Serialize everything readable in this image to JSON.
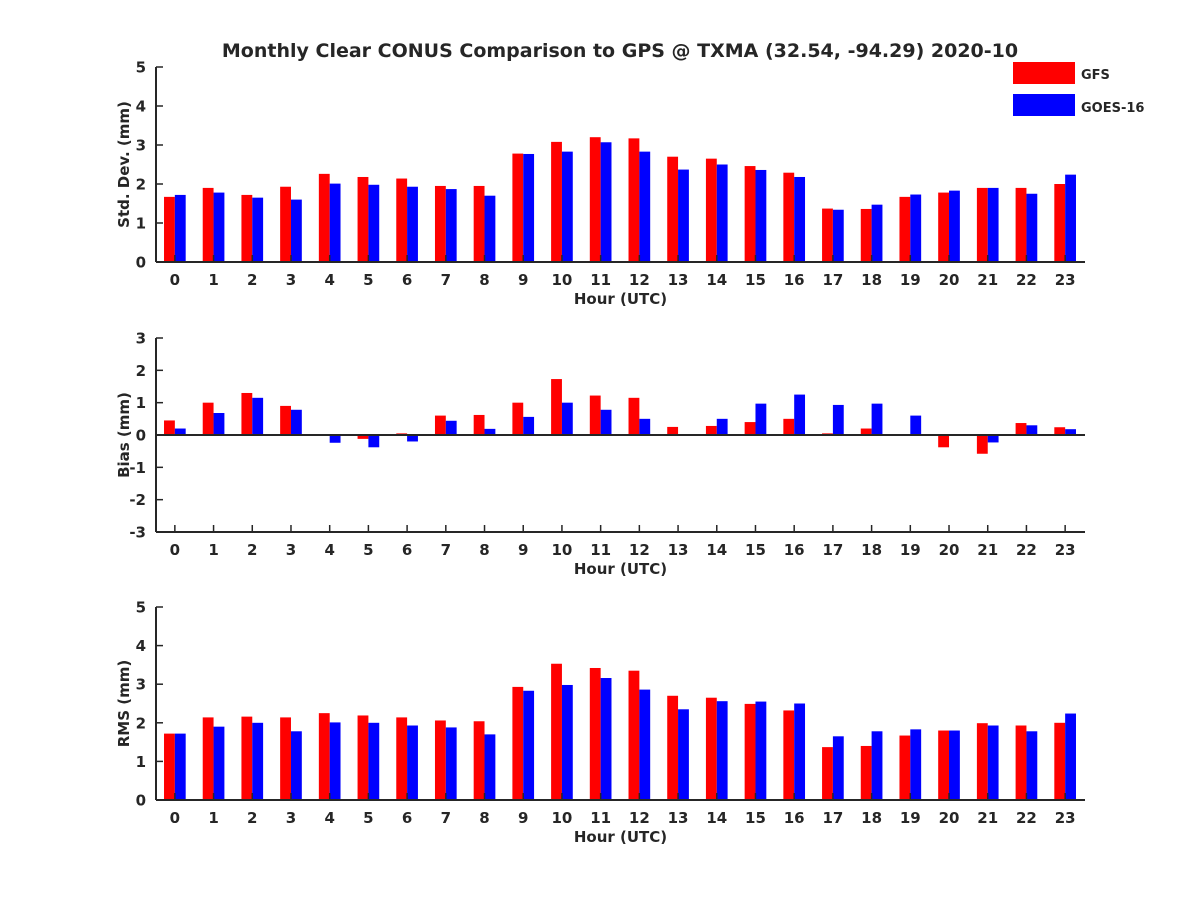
{
  "title": "Monthly Clear CONUS Comparison to GPS @ TXMA (32.54, -94.29) 2020-10",
  "legend": [
    {
      "name": "GFS",
      "color": "#ff0000"
    },
    {
      "name": "GOES-16",
      "color": "#0000ff"
    }
  ],
  "colors": {
    "gfs": "#ff0000",
    "goes": "#0000ff",
    "axis": "#262626"
  },
  "chart_data": [
    {
      "type": "bar",
      "xlabel": "Hour (UTC)",
      "ylabel": "Std. Dev. (mm)",
      "ylim": [
        0,
        5
      ],
      "yticks": [
        0,
        1,
        2,
        3,
        4,
        5
      ],
      "categories": [
        "0",
        "1",
        "2",
        "3",
        "4",
        "5",
        "6",
        "7",
        "8",
        "9",
        "10",
        "11",
        "12",
        "13",
        "14",
        "15",
        "16",
        "17",
        "18",
        "19",
        "20",
        "21",
        "22",
        "23"
      ],
      "series": [
        {
          "name": "GFS",
          "values": [
            1.67,
            1.9,
            1.72,
            1.93,
            2.26,
            2.18,
            2.14,
            1.95,
            1.95,
            2.78,
            3.08,
            3.2,
            3.17,
            2.7,
            2.65,
            2.46,
            2.29,
            1.37,
            1.36,
            1.67,
            1.78,
            1.9,
            1.9,
            2.0
          ]
        },
        {
          "name": "GOES-16",
          "values": [
            1.72,
            1.78,
            1.65,
            1.6,
            2.01,
            1.98,
            1.93,
            1.87,
            1.7,
            2.77,
            2.83,
            3.07,
            2.83,
            2.37,
            2.5,
            2.36,
            2.18,
            1.34,
            1.47,
            1.73,
            1.83,
            1.9,
            1.75,
            2.24
          ]
        }
      ]
    },
    {
      "type": "bar",
      "xlabel": "Hour (UTC)",
      "ylabel": "Bias (mm)",
      "ylim": [
        -3,
        3
      ],
      "yticks": [
        -3,
        -2,
        -1,
        0,
        1,
        2,
        3
      ],
      "categories": [
        "0",
        "1",
        "2",
        "3",
        "4",
        "5",
        "6",
        "7",
        "8",
        "9",
        "10",
        "11",
        "12",
        "13",
        "14",
        "15",
        "16",
        "17",
        "18",
        "19",
        "20",
        "21",
        "22",
        "23"
      ],
      "series": [
        {
          "name": "GFS",
          "values": [
            0.45,
            1.0,
            1.3,
            0.9,
            -0.03,
            -0.12,
            0.05,
            0.6,
            0.62,
            1.0,
            1.73,
            1.22,
            1.15,
            0.25,
            0.28,
            0.4,
            0.5,
            0.05,
            0.2,
            -0.02,
            -0.38,
            -0.58,
            0.37,
            0.24
          ]
        },
        {
          "name": "GOES-16",
          "values": [
            0.2,
            0.68,
            1.15,
            0.78,
            -0.24,
            -0.38,
            -0.2,
            0.44,
            0.19,
            0.56,
            1.0,
            0.78,
            0.5,
            0.0,
            0.5,
            0.97,
            1.25,
            0.93,
            0.97,
            0.6,
            0.03,
            -0.23,
            0.3,
            0.18
          ]
        }
      ]
    },
    {
      "type": "bar",
      "xlabel": "Hour (UTC)",
      "ylabel": "RMS (mm)",
      "ylim": [
        0,
        5
      ],
      "yticks": [
        0,
        1,
        2,
        3,
        4,
        5
      ],
      "categories": [
        "0",
        "1",
        "2",
        "3",
        "4",
        "5",
        "6",
        "7",
        "8",
        "9",
        "10",
        "11",
        "12",
        "13",
        "14",
        "15",
        "16",
        "17",
        "18",
        "19",
        "20",
        "21",
        "22",
        "23"
      ],
      "series": [
        {
          "name": "GFS",
          "values": [
            1.72,
            2.14,
            2.16,
            2.14,
            2.25,
            2.19,
            2.14,
            2.06,
            2.04,
            2.93,
            3.53,
            3.42,
            3.35,
            2.7,
            2.65,
            2.49,
            2.32,
            1.37,
            1.4,
            1.67,
            1.8,
            1.99,
            1.93,
            2.0
          ]
        },
        {
          "name": "GOES-16",
          "values": [
            1.72,
            1.9,
            2.0,
            1.78,
            2.01,
            2.0,
            1.93,
            1.88,
            1.7,
            2.83,
            2.98,
            3.16,
            2.86,
            2.35,
            2.56,
            2.55,
            2.5,
            1.65,
            1.78,
            1.83,
            1.8,
            1.93,
            1.78,
            2.24
          ]
        }
      ]
    }
  ]
}
